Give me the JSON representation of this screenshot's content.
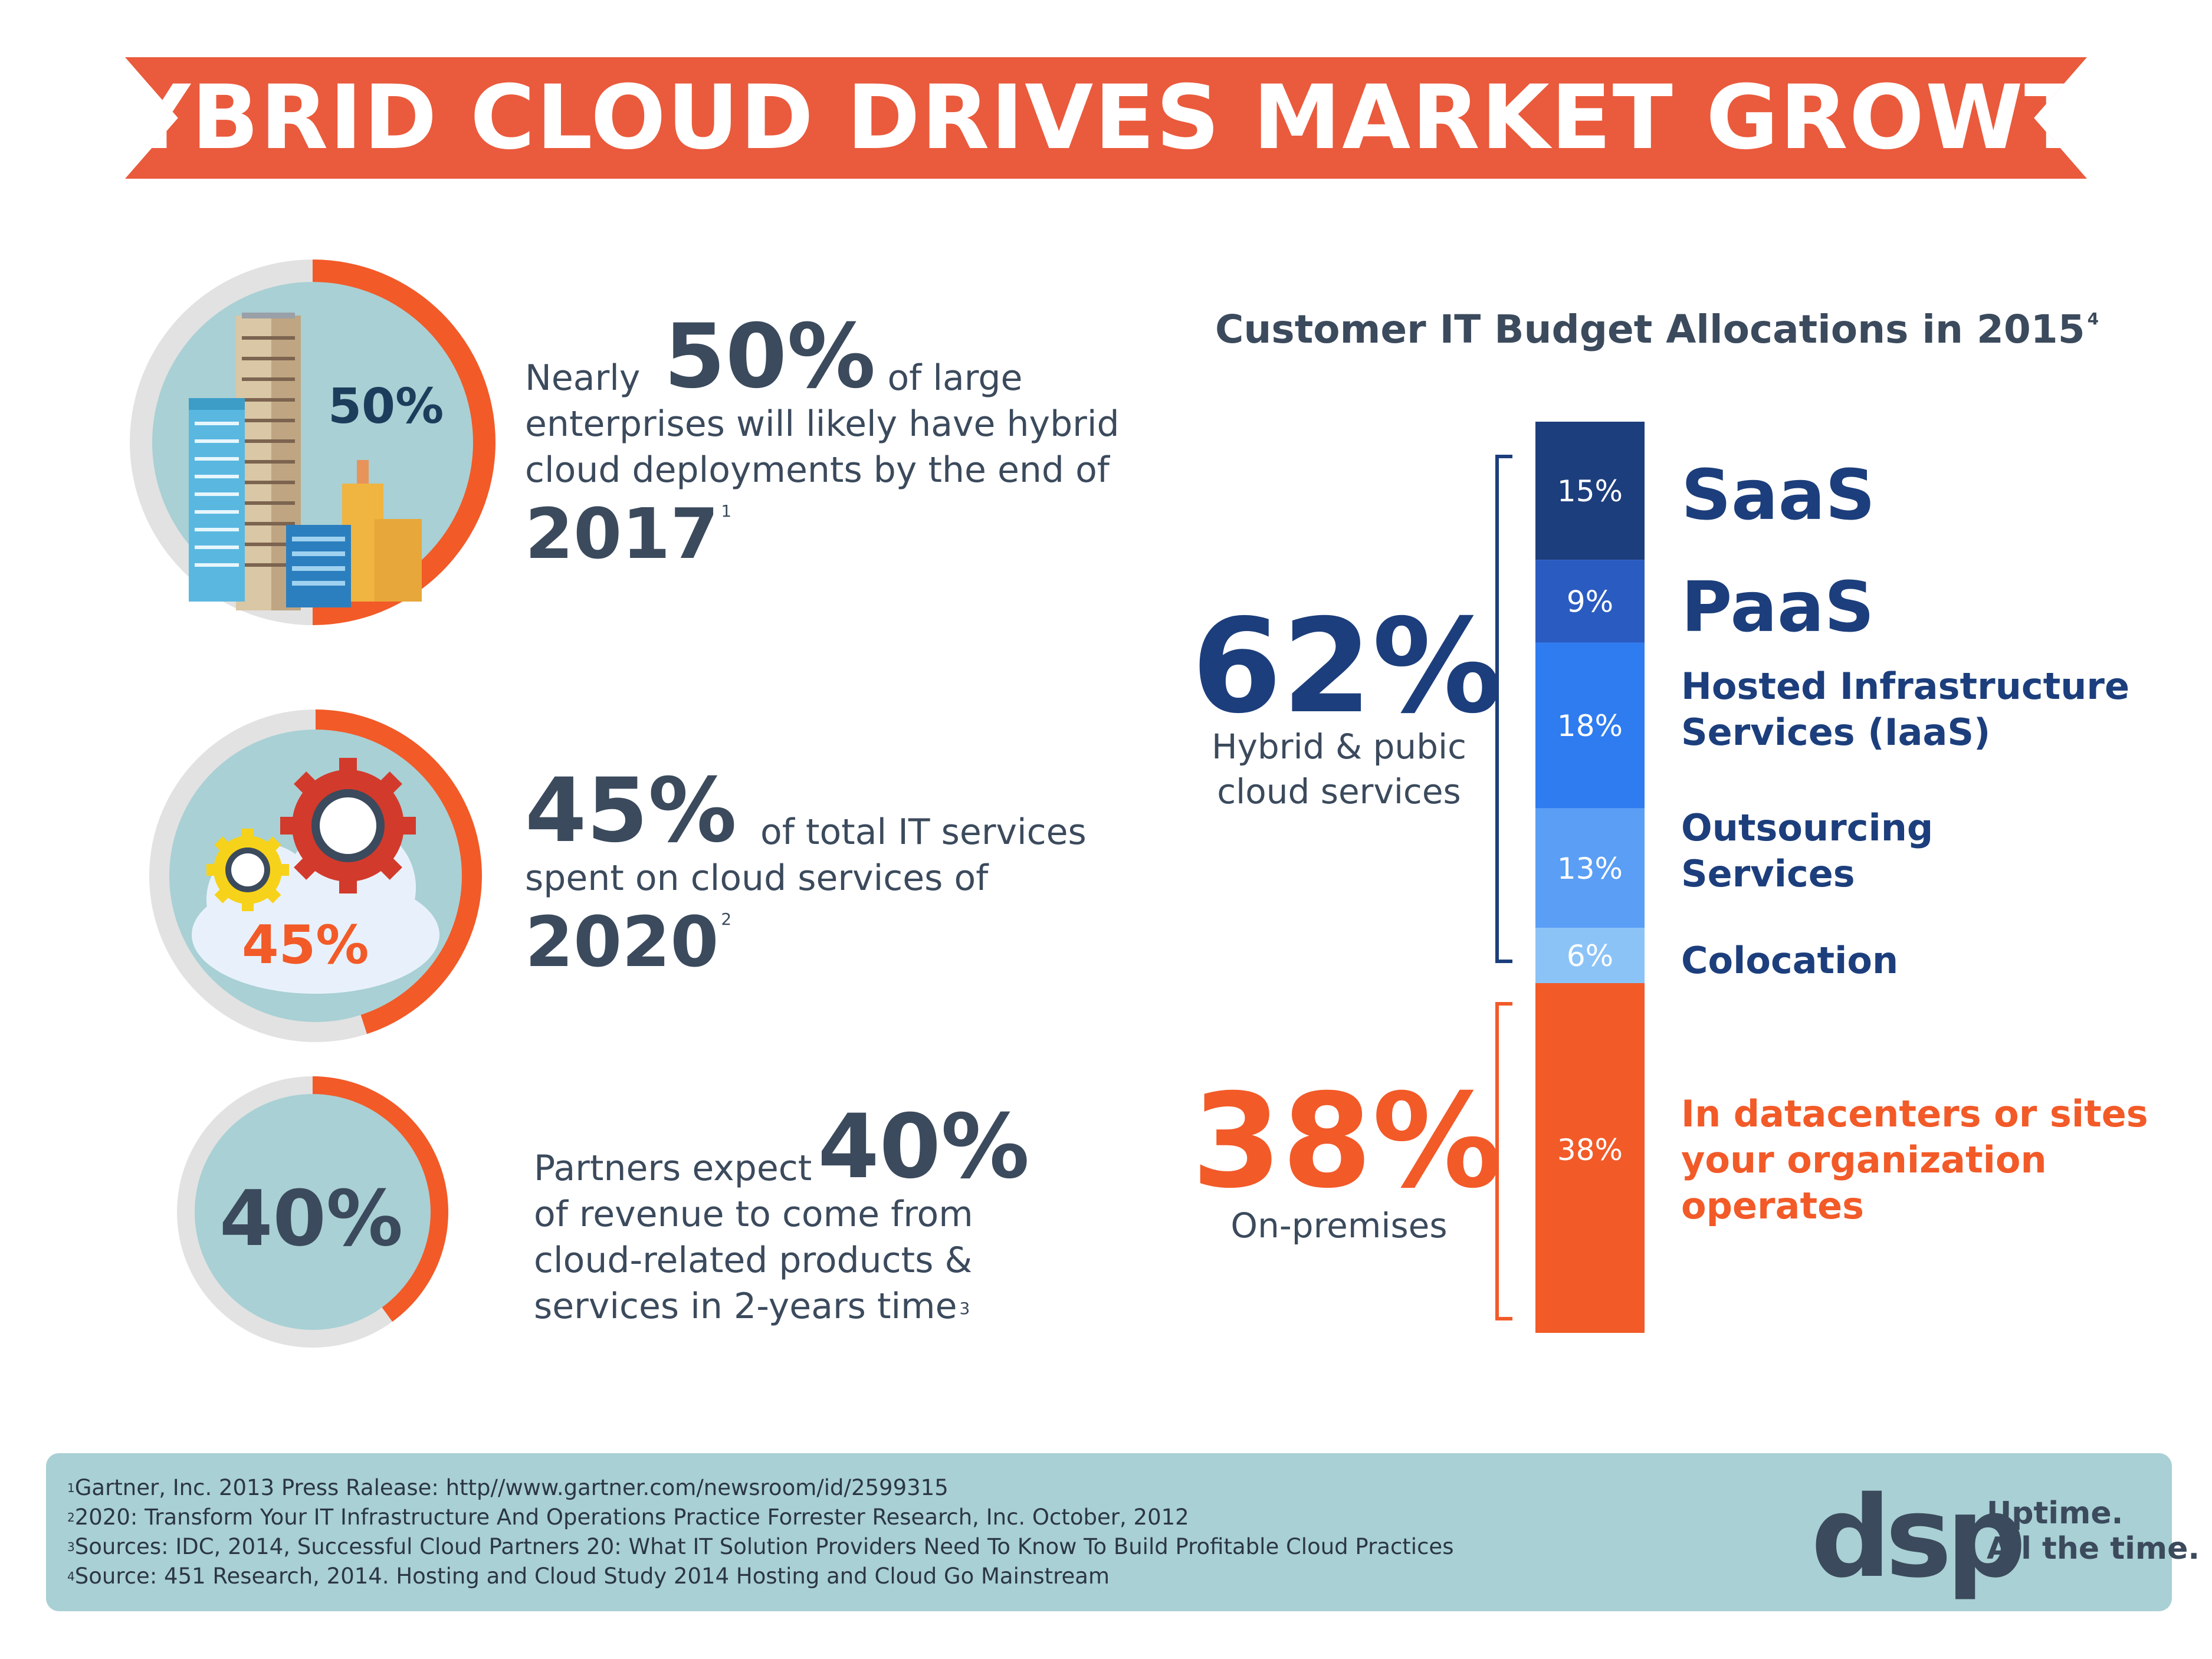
{
  "banner": {
    "title": "HYBRID CLOUD DRIVES MARKET GROWTH"
  },
  "stats": [
    {
      "ring_label": "50%",
      "ring_fraction": 0.5,
      "pre": "Nearly",
      "big": "50%",
      "after": "of large",
      "line2": "enterprises will likely have hybrid",
      "line3": "cloud deployments by the end of",
      "year": "2017",
      "footnote": "1"
    },
    {
      "ring_label": "45%",
      "ring_fraction": 0.45,
      "big": "45%",
      "after": "of total IT services",
      "line2": "spent on cloud services of",
      "year": "2020",
      "footnote": "2"
    },
    {
      "ring_label": "40%",
      "ring_fraction": 0.4,
      "pre": "Partners expect",
      "big": "40%",
      "line2": "of revenue to come from",
      "line3": "cloud-related products &",
      "line4": "services in 2-years time",
      "footnote": "3"
    }
  ],
  "chart_data": {
    "type": "bar",
    "title": "Customer IT Budget Allocations in 2015",
    "title_footnote": "4",
    "stacked": true,
    "categories": [
      "SaaS",
      "PaaS",
      "Hosted Infrastructure Services (IaaS)",
      "Outsourcing Services",
      "Colocation",
      "In datacenters or sites your organization operates"
    ],
    "values": [
      15,
      9,
      18,
      13,
      6,
      38
    ],
    "value_labels": [
      "15%",
      "9%",
      "18%",
      "13%",
      "6%",
      "38%"
    ],
    "colors": [
      "#1c3e7c",
      "#2a5bc0",
      "#2f7cf0",
      "#5a9ef5",
      "#8cc3f7",
      "#f25a28"
    ],
    "category_lines": [
      [
        "SaaS"
      ],
      [
        "PaaS"
      ],
      [
        "Hosted Infrastructure",
        "Services (IaaS)"
      ],
      [
        "Outsourcing",
        "Services"
      ],
      [
        "Colocation"
      ],
      [
        "In datacenters or sites",
        "your organization",
        "operates"
      ]
    ],
    "groups": [
      {
        "pct": "62%",
        "desc_lines": [
          "Hybrid & pubic",
          "cloud services"
        ],
        "color": "#1c3e7c"
      },
      {
        "pct": "38%",
        "desc_lines": [
          "On-premises"
        ],
        "color": "#f25a28"
      }
    ]
  },
  "footer": {
    "footnotes": [
      {
        "num": "1",
        "text": "Gartner, Inc. 2013 Press Ralease: http//www.gartner.com/newsroom/id/2599315"
      },
      {
        "num": "2",
        "text": "2020: Transform Your IT Infrastructure And Operations Practice Forrester Research, Inc. October, 2012"
      },
      {
        "num": "3",
        "text": "Sources: IDC, 2014, Successful Cloud Partners 20: What IT Solution Providers Need To Know To Build Profitable Cloud Practices"
      },
      {
        "num": "4",
        "text": "Source: 451 Research, 2014. Hosting and Cloud Study 2014 Hosting and Cloud Go Mainstream"
      }
    ],
    "logo": {
      "mark": "dsp",
      "tag1": "Uptime.",
      "tag2": "All the time."
    }
  },
  "colors": {
    "orange": "#f25a28",
    "banner": "#ea5a3c",
    "teal": "#a9d0d4",
    "navy": "#1c3e7c",
    "slate": "#3b4a5c",
    "ring_grey": "#e2e2e2"
  }
}
